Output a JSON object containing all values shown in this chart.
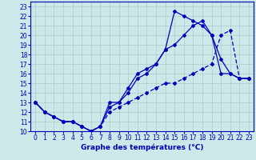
{
  "xlabel": "Graphe des températures (°C)",
  "bg_color": "#cde8e8",
  "line_color": "#0000bb",
  "grid_color": "#aacccc",
  "xlim": [
    -0.5,
    23.5
  ],
  "ylim": [
    10,
    23.5
  ],
  "xticks": [
    0,
    1,
    2,
    3,
    4,
    5,
    6,
    7,
    8,
    9,
    10,
    11,
    12,
    13,
    14,
    15,
    16,
    17,
    18,
    19,
    20,
    21,
    22,
    23
  ],
  "yticks": [
    10,
    11,
    12,
    13,
    14,
    15,
    16,
    17,
    18,
    19,
    20,
    21,
    22,
    23
  ],
  "line1_x": [
    0,
    1,
    2,
    3,
    4,
    5,
    6,
    7,
    8,
    9,
    10,
    11,
    12,
    13,
    14,
    15,
    16,
    17,
    18,
    19,
    20,
    21,
    22,
    23
  ],
  "line1_y": [
    13,
    12,
    11.5,
    11,
    11,
    10.5,
    10,
    10.5,
    13,
    13,
    14.5,
    16,
    16.5,
    17,
    18.5,
    22.5,
    22,
    21.5,
    21,
    20,
    16,
    16,
    15.5,
    15.5
  ],
  "line2_x": [
    0,
    1,
    2,
    3,
    4,
    5,
    6,
    7,
    8,
    9,
    10,
    11,
    12,
    13,
    14,
    15,
    16,
    17,
    18,
    19,
    20,
    21,
    22,
    23
  ],
  "line2_y": [
    13,
    12,
    11.5,
    11,
    11,
    10.5,
    10,
    10.5,
    12.5,
    13,
    14,
    15.5,
    16,
    17,
    18.5,
    19,
    20,
    21,
    21.5,
    20,
    17.5,
    16,
    15.5,
    15.5
  ],
  "line3_x": [
    0,
    1,
    2,
    3,
    4,
    5,
    6,
    7,
    8,
    9,
    10,
    11,
    12,
    13,
    14,
    15,
    16,
    17,
    18,
    19,
    20,
    21,
    22,
    23
  ],
  "line3_y": [
    13,
    12,
    11.5,
    11,
    11,
    10.5,
    10,
    10.5,
    12,
    12.5,
    13,
    13.5,
    14,
    14.5,
    15,
    15,
    15.5,
    16,
    16.5,
    17,
    20,
    20.5,
    15.5,
    15.5
  ],
  "marker": "D",
  "markersize": 2.0,
  "linewidth": 0.9,
  "tick_fontsize": 5.5,
  "xlabel_fontsize": 6.5
}
